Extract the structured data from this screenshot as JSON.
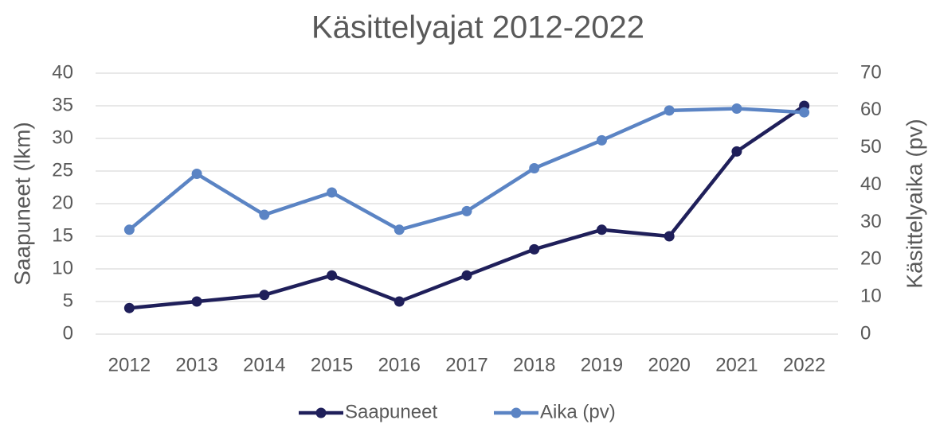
{
  "chart_data": {
    "type": "line",
    "title": "Käsittelyajat 2012-2022",
    "categories": [
      "2012",
      "2013",
      "2014",
      "2015",
      "2016",
      "2017",
      "2018",
      "2019",
      "2020",
      "2021",
      "2022"
    ],
    "series": [
      {
        "name": "Saapuneet",
        "color": "#1f1f5a",
        "values": [
          4,
          5,
          6,
          9,
          5,
          9,
          13,
          16,
          15,
          28,
          35
        ]
      },
      {
        "name": "Aika (pv)",
        "color": "#5b84c4",
        "axis": "y2",
        "values": [
          28,
          43,
          32,
          38,
          28,
          33,
          44.5,
          52,
          60,
          60.5,
          59.5
        ]
      }
    ],
    "y_label": "Saapuneet (lkm)",
    "y2_label": "Käsittelyaika (pv)",
    "ylim": [
      0,
      40
    ],
    "yticks": [
      0,
      5,
      10,
      15,
      20,
      25,
      30,
      35,
      40
    ],
    "y2lim": [
      0,
      70
    ],
    "y2ticks": [
      0,
      10,
      20,
      30,
      40,
      50,
      60,
      70
    ],
    "grid": true,
    "legend": "bottom"
  }
}
